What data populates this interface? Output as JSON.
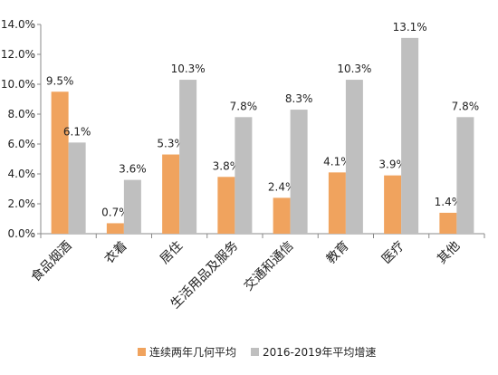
{
  "chart_data": {
    "type": "bar",
    "categories": [
      "食品烟酒",
      "衣着",
      "居住",
      "生活用品及服务",
      "交通和通信",
      "教育",
      "医疗",
      "其他"
    ],
    "series": [
      {
        "name": "连续两年几何平均",
        "values": [
          9.5,
          0.7,
          5.3,
          3.8,
          2.4,
          4.1,
          3.9,
          1.4
        ],
        "labels": [
          "9.5%",
          "0.7%",
          "5.3%",
          "3.8%",
          "2.4%",
          "4.1%",
          "3.9%",
          "1.4%"
        ]
      },
      {
        "name": "2016-2019年平均增速",
        "values": [
          6.1,
          3.6,
          10.3,
          7.8,
          8.3,
          10.3,
          13.1,
          7.8
        ],
        "labels": [
          "6.1%",
          "3.6%",
          "10.3%",
          "7.8%",
          "8.3%",
          "10.3%",
          "13.1%",
          "7.8%"
        ]
      }
    ],
    "y_ticks": [
      "0.0%",
      "2.0%",
      "4.0%",
      "6.0%",
      "8.0%",
      "10.0%",
      "12.0%",
      "14.0%"
    ],
    "ylim": [
      0,
      14
    ],
    "grid": false,
    "legend_position": "bottom",
    "colors": [
      "#F0A35E",
      "#BFBFBF"
    ],
    "title": "",
    "xlabel": "",
    "ylabel": ""
  }
}
